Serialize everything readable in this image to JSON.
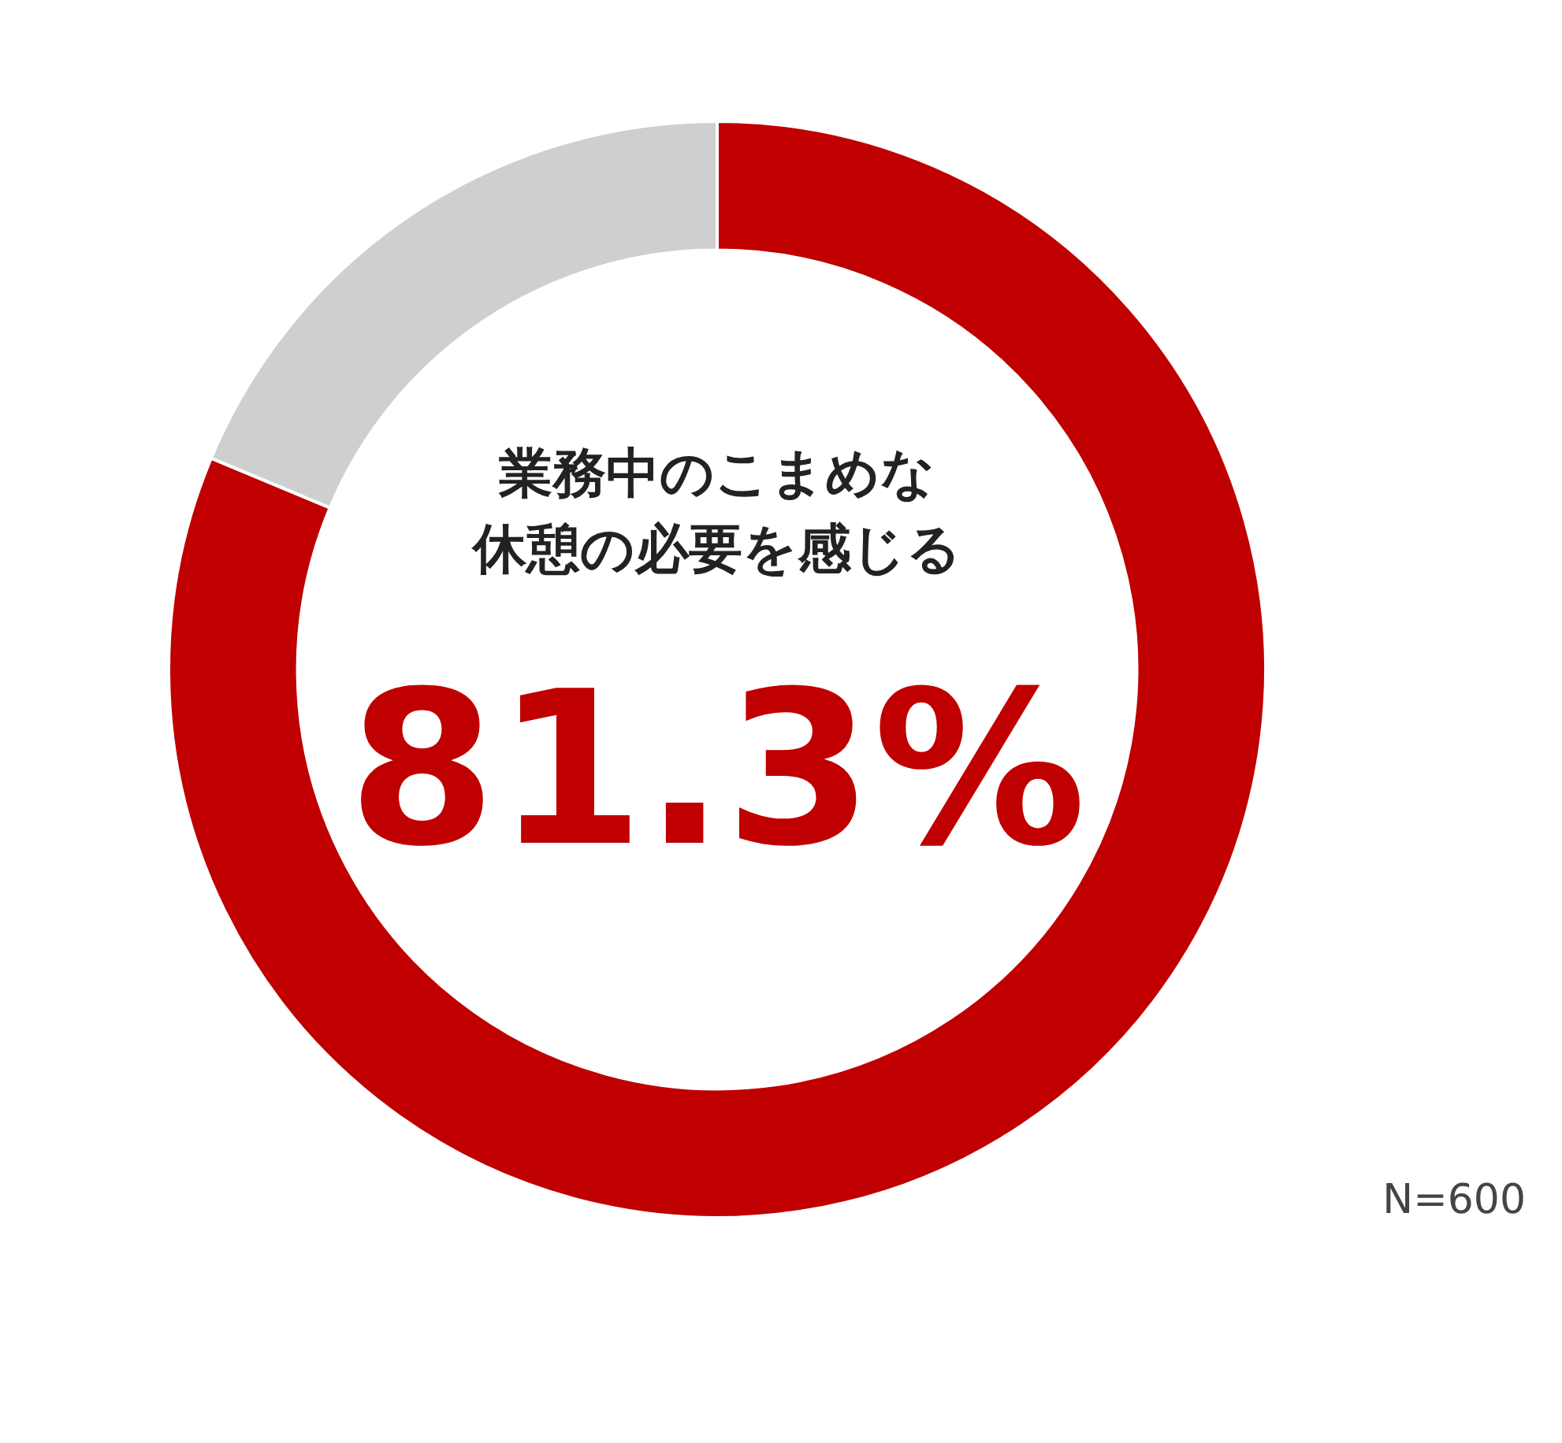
{
  "chart_data": {
    "type": "donut",
    "title": "業務中のこまめな休憩の必要を感じる",
    "categories": [
      null,
      null
    ],
    "values": [
      81.3,
      18.7
    ],
    "colors": [
      "#c00000",
      "#d0cfd0"
    ],
    "value_labels": [
      "81.3%",
      null
    ],
    "annotations": [
      "N=600"
    ]
  }
}
